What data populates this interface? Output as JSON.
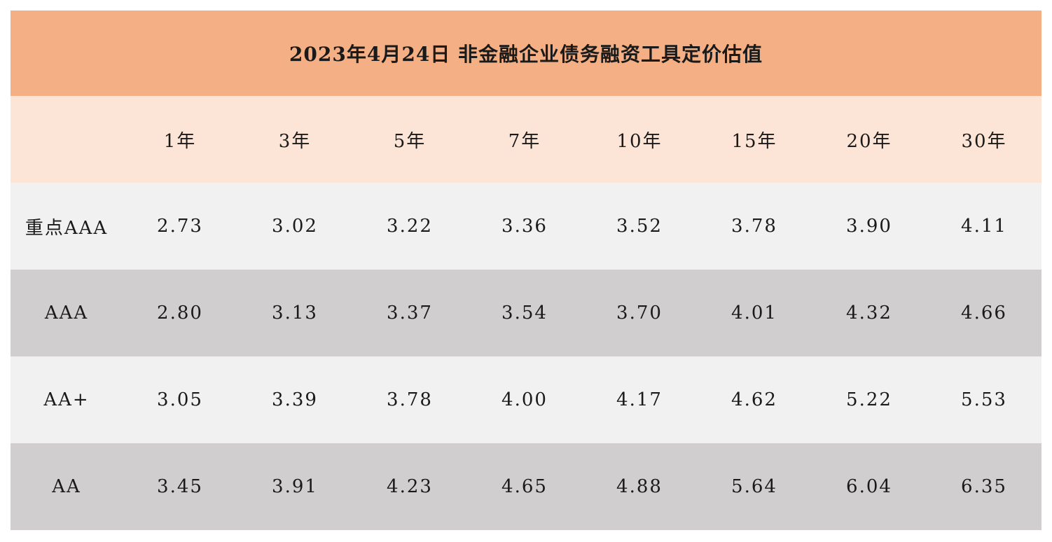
{
  "title": "2023年4月24日  非金融企业债务融资工具定价估值",
  "columns": [
    "1年",
    "3年",
    "5年",
    "7年",
    "10年",
    "15年",
    "20年",
    "30年"
  ],
  "rows": [
    {
      "label": "重点AAA",
      "values": [
        "2.73",
        "3.02",
        "3.22",
        "3.36",
        "3.52",
        "3.78",
        "3.90",
        "4.11"
      ]
    },
    {
      "label": "AAA",
      "values": [
        "2.80",
        "3.13",
        "3.37",
        "3.54",
        "3.70",
        "4.01",
        "4.32",
        "4.66"
      ]
    },
    {
      "label": "AA+",
      "values": [
        "3.05",
        "3.39",
        "3.78",
        "4.00",
        "4.17",
        "4.62",
        "5.22",
        "5.53"
      ]
    },
    {
      "label": "AA",
      "values": [
        "3.45",
        "3.91",
        "4.23",
        "4.65",
        "4.88",
        "5.64",
        "6.04",
        "6.35"
      ]
    }
  ],
  "colors": {
    "title_bg": "#f4b084",
    "header_bg": "#fce4d6",
    "row_light": "#f2f1f1",
    "row_dark": "#d0cece"
  }
}
